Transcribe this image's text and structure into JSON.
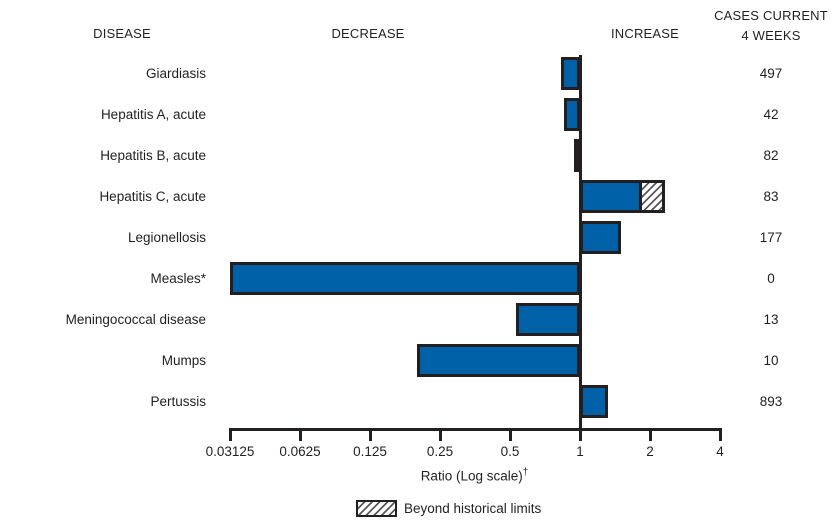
{
  "header": {
    "disease": "DISEASE",
    "decrease": "DECREASE",
    "increase": "INCREASE",
    "cases_line1": "CASES CURRENT",
    "cases_line2": "4 WEEKS"
  },
  "chart_data": {
    "type": "bar",
    "orientation": "horizontal",
    "scale": "log2",
    "title": "",
    "xlabel": "Ratio (Log scale)",
    "xlabel_superscript": "†",
    "axis": {
      "ticks": [
        "0.03125",
        "0.0625",
        "0.125",
        "0.25",
        "0.5",
        "1",
        "2",
        "4"
      ],
      "min": 0.03125,
      "max": 4,
      "baseline": 1,
      "grid": false
    },
    "legend": {
      "label": "Beyond historical limits",
      "swatch": "hatched",
      "position": "bottom-center"
    },
    "rows": [
      {
        "name": "Giardiasis",
        "ratio": 0.83,
        "beyond_ratio": null,
        "cases": "497"
      },
      {
        "name": "Hepatitis A, acute",
        "ratio": 0.85,
        "beyond_ratio": null,
        "cases": "42"
      },
      {
        "name": "Hepatitis B, acute",
        "ratio": 0.94,
        "beyond_ratio": null,
        "cases": "82"
      },
      {
        "name": "Hepatitis C, acute",
        "ratio": 1.85,
        "beyond_ratio": 2.33,
        "cases": "83"
      },
      {
        "name": "Legionellosis",
        "ratio": 1.5,
        "beyond_ratio": null,
        "cases": "177"
      },
      {
        "name": "Measles*",
        "ratio": 0.03125,
        "beyond_ratio": null,
        "cases": "0"
      },
      {
        "name": "Meningococcal disease",
        "ratio": 0.53,
        "beyond_ratio": null,
        "cases": "13"
      },
      {
        "name": "Mumps",
        "ratio": 0.2,
        "beyond_ratio": null,
        "cases": "10"
      },
      {
        "name": "Pertussis",
        "ratio": 1.32,
        "beyond_ratio": null,
        "cases": "893"
      }
    ],
    "colors": {
      "bar_fill": "#0061a9",
      "bar_border": "#231f20",
      "hatch_line": "#58595b",
      "text": "#231f20"
    }
  }
}
